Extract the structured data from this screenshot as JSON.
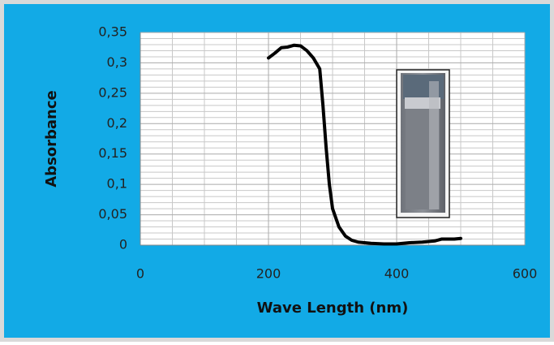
{
  "chart_data": {
    "type": "line",
    "x_label": "Wave Length (nm)",
    "y_label": "Absorbance",
    "x": [
      200,
      210,
      220,
      230,
      240,
      250,
      260,
      270,
      280,
      285,
      290,
      295,
      300,
      310,
      320,
      330,
      340,
      350,
      360,
      380,
      400,
      420,
      440,
      460,
      470,
      480,
      490,
      500
    ],
    "series": [
      {
        "name": "Absorbance",
        "color": "#000000",
        "values": [
          0.308,
          0.316,
          0.325,
          0.326,
          0.329,
          0.328,
          0.32,
          0.308,
          0.29,
          0.23,
          0.16,
          0.1,
          0.06,
          0.03,
          0.015,
          0.008,
          0.005,
          0.004,
          0.003,
          0.002,
          0.002,
          0.004,
          0.005,
          0.007,
          0.01,
          0.01,
          0.01,
          0.011
        ]
      }
    ],
    "xlim": [
      0,
      600
    ],
    "xticks": [
      0,
      200,
      400,
      600
    ],
    "ylim": [
      0,
      0.35
    ],
    "yticks": [
      0,
      {
        "value": 0.05,
        "label": "0,05"
      },
      {
        "value": 0.1,
        "label": "0,1"
      },
      {
        "value": 0.15,
        "label": "0,15"
      },
      {
        "value": 0.2,
        "label": "0,2"
      },
      {
        "value": 0.25,
        "label": "0,25"
      },
      {
        "value": 0.3,
        "label": "0,3"
      },
      {
        "value": 0.35,
        "label": "0,35"
      }
    ],
    "grid": true
  }
}
